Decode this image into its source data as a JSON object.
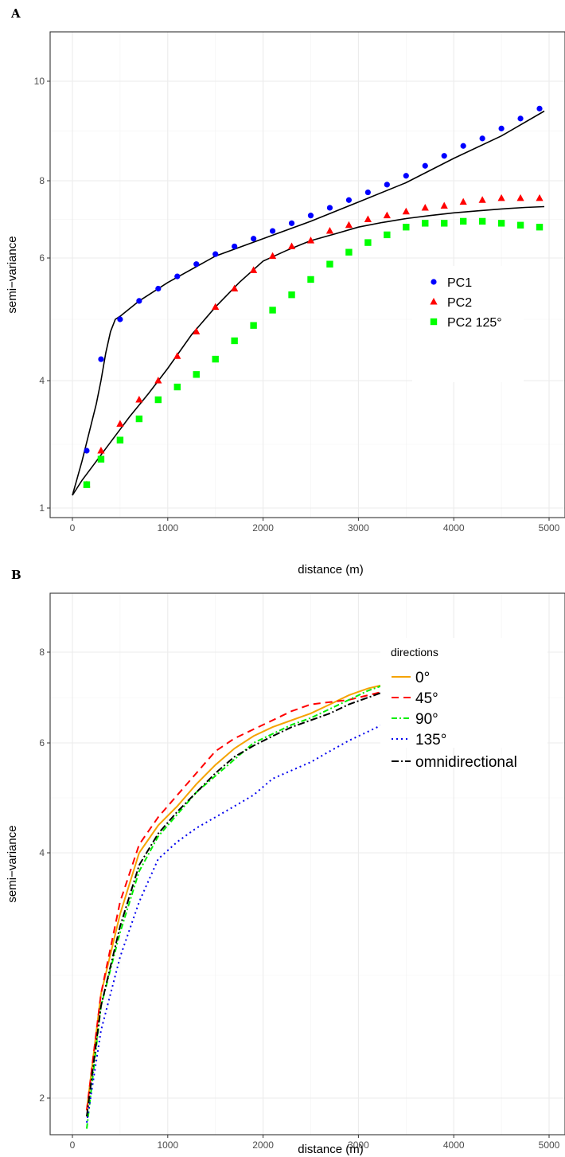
{
  "chart_data": [
    {
      "panel_label": "A",
      "type": "scatter",
      "xlabel": "distance (m)",
      "ylabel": "semi−variance",
      "xlim": [
        -250,
        5180
      ],
      "ylim": [
        0.8,
        10.65
      ],
      "x_ticks": [
        "0",
        "1000",
        "2000",
        "3000",
        "4000",
        "5000"
      ],
      "y_ticks": [
        "1",
        "4",
        "6",
        "8",
        "10"
      ],
      "grid": true,
      "legend_position": "center-right",
      "series": [
        {
          "name": "PC1",
          "marker": "circle",
          "color": "#0000ff",
          "x": [
            150,
            300,
            500,
            700,
            900,
            1100,
            1300,
            1500,
            1700,
            1900,
            2100,
            2300,
            2500,
            2700,
            2900,
            3100,
            3300,
            3500,
            3700,
            3900,
            4100,
            4300,
            4500,
            4700,
            4900
          ],
          "y": [
            2.35,
            4.35,
            5.0,
            5.3,
            5.5,
            5.7,
            5.9,
            6.1,
            6.3,
            6.5,
            6.7,
            6.9,
            7.1,
            7.3,
            7.5,
            7.7,
            7.9,
            8.1,
            8.3,
            8.5,
            8.7,
            8.85,
            9.05,
            9.25,
            9.45
          ]
        },
        {
          "name": "PC2",
          "marker": "triangle",
          "color": "#ff0000",
          "x": [
            150,
            300,
            500,
            700,
            900,
            1100,
            1300,
            1500,
            1700,
            1900,
            2100,
            2300,
            2500,
            2700,
            2900,
            3100,
            3300,
            3500,
            3700,
            3900,
            4100,
            4300,
            4500,
            4700,
            4900
          ],
          "y": [
            1.55,
            2.35,
            2.98,
            3.55,
            4.0,
            4.4,
            4.8,
            5.2,
            5.5,
            5.8,
            6.05,
            6.3,
            6.45,
            6.7,
            6.85,
            7.0,
            7.1,
            7.2,
            7.3,
            7.35,
            7.45,
            7.5,
            7.55,
            7.55,
            7.55
          ]
        },
        {
          "name": "PC2 125°",
          "marker": "square",
          "color": "#00ff00",
          "x": [
            150,
            300,
            500,
            700,
            900,
            1100,
            1300,
            1500,
            1700,
            1900,
            2100,
            2300,
            2500,
            2700,
            2900,
            3100,
            3300,
            3500,
            3700,
            3900,
            4100,
            4300,
            4500,
            4700,
            4900
          ],
          "y": [
            1.55,
            2.15,
            2.6,
            3.1,
            3.55,
            3.85,
            4.1,
            4.35,
            4.65,
            4.9,
            5.15,
            5.4,
            5.65,
            5.9,
            6.15,
            6.4,
            6.6,
            6.8,
            6.9,
            6.9,
            6.95,
            6.95,
            6.9,
            6.85,
            6.8
          ]
        }
      ],
      "fitted_lines": [
        {
          "color": "#000000",
          "x": [
            0,
            50,
            100,
            150,
            200,
            250,
            300,
            350,
            400,
            450,
            500,
            700,
            1000,
            1500,
            2000,
            2500,
            3000,
            3500,
            4000,
            4500,
            4950
          ],
          "y": [
            1.3,
            1.7,
            2.1,
            2.55,
            3.0,
            3.45,
            4.0,
            4.45,
            4.8,
            5.0,
            5.05,
            5.3,
            5.6,
            6.05,
            6.5,
            6.95,
            7.45,
            7.95,
            8.45,
            8.9,
            9.4
          ]
        },
        {
          "color": "#000000",
          "x": [
            0,
            100,
            200,
            300,
            400,
            500,
            600,
            800,
            1000,
            1250,
            1500,
            1750,
            2000,
            2250,
            2500,
            2750,
            3000,
            3250,
            3500,
            3750,
            4000,
            4250,
            4500,
            4750,
            4950
          ],
          "y": [
            1.3,
            1.65,
            1.95,
            2.25,
            2.55,
            2.85,
            3.15,
            3.7,
            4.2,
            4.75,
            5.2,
            5.6,
            5.95,
            6.2,
            6.45,
            6.62,
            6.8,
            6.92,
            7.02,
            7.1,
            7.17,
            7.22,
            7.27,
            7.31,
            7.33
          ]
        }
      ]
    },
    {
      "panel_label": "B",
      "type": "line",
      "xlabel": "distance (m)",
      "ylabel": "semi−variance",
      "xlim": [
        -250,
        5180
      ],
      "ylim": [
        1.55,
        8.85
      ],
      "x_ticks": [
        "0",
        "1000",
        "2000",
        "3000",
        "4000",
        "5000"
      ],
      "y_ticks": [
        "2",
        "4",
        "6",
        "8"
      ],
      "grid": true,
      "legend_position": "center-right",
      "legend_title": "directions",
      "series": [
        {
          "name": "0°",
          "color": "#f5a300",
          "dash": "",
          "x": [
            150,
            300,
            500,
            700,
            900,
            1100,
            1300,
            1500,
            1700,
            1900,
            2100,
            2300,
            2500,
            2700,
            2900,
            3100,
            3300,
            3500,
            3700,
            3900,
            4100,
            4300,
            4500,
            4700,
            4900
          ],
          "y": [
            1.9,
            2.85,
            3.5,
            4.0,
            4.5,
            4.85,
            5.25,
            5.6,
            5.9,
            6.15,
            6.35,
            6.5,
            6.65,
            6.85,
            7.05,
            7.2,
            7.3,
            7.4,
            7.55,
            7.65,
            7.75,
            7.85,
            7.9,
            7.92,
            7.9
          ]
        },
        {
          "name": "45°",
          "color": "#ff0000",
          "dash": "9,6",
          "x": [
            150,
            300,
            500,
            700,
            900,
            1100,
            1300,
            1500,
            1700,
            1900,
            2100,
            2300,
            2500,
            2700,
            2900,
            3100,
            3300,
            3500,
            3700,
            3900,
            4100,
            4300,
            4500,
            4700,
            4900
          ],
          "y": [
            1.9,
            2.85,
            3.6,
            4.15,
            4.65,
            5.05,
            5.45,
            5.85,
            6.1,
            6.3,
            6.5,
            6.7,
            6.85,
            6.9,
            6.95,
            7.05,
            7.15,
            7.25,
            7.35,
            7.45,
            7.55,
            7.65,
            7.7,
            7.7,
            7.65
          ]
        },
        {
          "name": "90°",
          "color": "#00ee00",
          "dash": "7,3,2,3",
          "x": [
            150,
            300,
            500,
            700,
            900,
            1100,
            1300,
            1500,
            1700,
            1900,
            2100,
            2300,
            2500,
            2700,
            2900,
            3100,
            3300,
            3500,
            3700,
            3900,
            4100,
            4300,
            4500,
            4700,
            4900
          ],
          "y": [
            1.75,
            2.75,
            3.35,
            3.85,
            4.3,
            4.7,
            5.1,
            5.4,
            5.7,
            6.0,
            6.2,
            6.4,
            6.55,
            6.75,
            6.95,
            7.15,
            7.3,
            7.35,
            7.45,
            7.55,
            7.55,
            7.6,
            7.62,
            7.65,
            7.75
          ]
        },
        {
          "name": "135°",
          "color": "#0000ee",
          "dash": "2,4",
          "x": [
            150,
            300,
            500,
            700,
            900,
            1100,
            1300,
            1500,
            1700,
            1900,
            2100,
            2300,
            2500,
            2700,
            2900,
            3100,
            3300,
            3500,
            3700,
            3900,
            4100,
            4300,
            4500,
            4700,
            4900
          ],
          "y": [
            1.8,
            2.55,
            3.15,
            3.6,
            3.95,
            4.2,
            4.45,
            4.65,
            4.85,
            5.05,
            5.35,
            5.5,
            5.65,
            5.85,
            6.05,
            6.25,
            6.45,
            6.65,
            6.75,
            6.78,
            6.8,
            6.8,
            6.78,
            6.78,
            6.72
          ]
        },
        {
          "name": "omnidirectional",
          "color": "#000000",
          "dash": "9,3,2,3",
          "x": [
            150,
            300,
            500,
            700,
            900,
            1100,
            1300,
            1500,
            1700,
            1900,
            2100,
            2300,
            2500,
            2700,
            2900,
            3100,
            3300,
            3500,
            3700,
            3900,
            4100,
            4300,
            4500,
            4700,
            4900
          ],
          "y": [
            1.85,
            2.75,
            3.4,
            3.9,
            4.35,
            4.75,
            5.1,
            5.45,
            5.75,
            5.95,
            6.15,
            6.35,
            6.5,
            6.65,
            6.85,
            7.0,
            7.15,
            7.25,
            7.3,
            7.35,
            7.4,
            7.45,
            7.5,
            7.5,
            7.5
          ]
        }
      ]
    }
  ]
}
